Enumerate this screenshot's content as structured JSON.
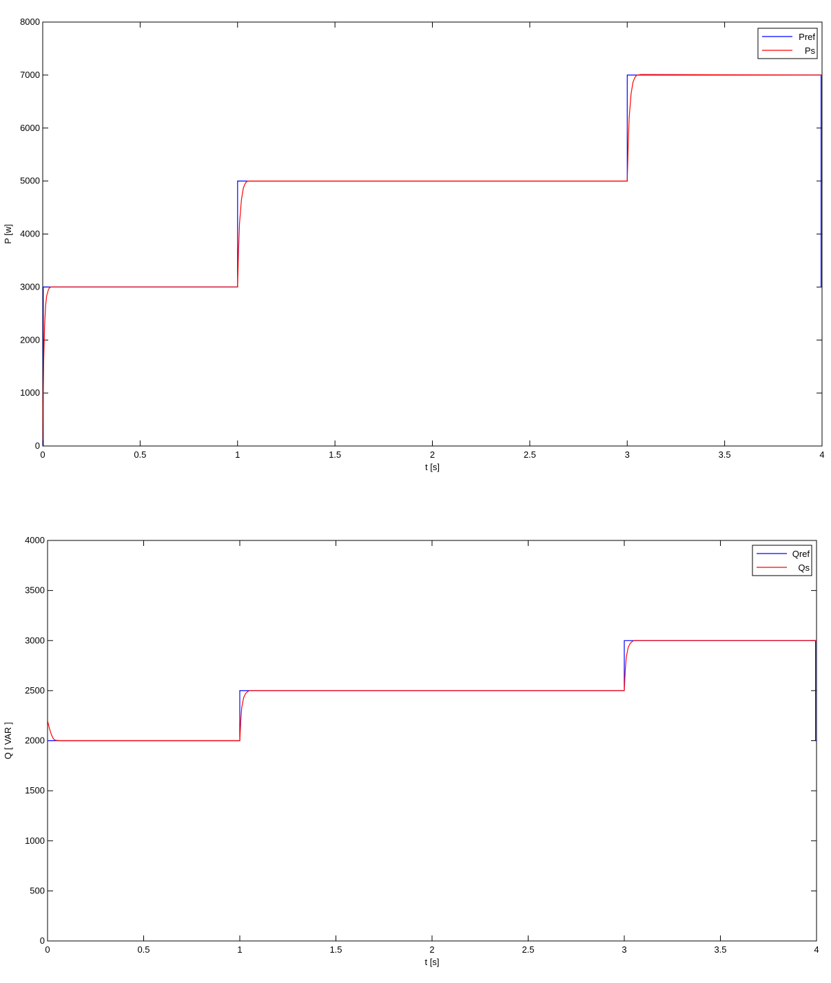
{
  "colors": {
    "ref": "#0000ff",
    "meas": "#ff0000",
    "axis": "#000000",
    "background": "#ffffff"
  },
  "chart_data": [
    {
      "type": "line",
      "xlabel": "t [s]",
      "ylabel": "P [w]",
      "xlim": [
        0,
        4
      ],
      "ylim": [
        0,
        8000
      ],
      "xticks": [
        0,
        0.5,
        1,
        1.5,
        2,
        2.5,
        3,
        3.5,
        4
      ],
      "xtick_labels": [
        "0",
        "0.5",
        "1",
        "1.5",
        "2",
        "2.5",
        "3",
        "3.5",
        "4"
      ],
      "yticks": [
        0,
        1000,
        2000,
        3000,
        4000,
        5000,
        6000,
        7000,
        8000
      ],
      "ytick_labels": [
        "0",
        "1000",
        "2000",
        "3000",
        "4000",
        "5000",
        "6000",
        "7000",
        "8000"
      ],
      "grid": false,
      "legend_position": "top-right",
      "series": [
        {
          "name": "Pref",
          "color": "#0000ff",
          "x": [
            0,
            0.003,
            0.003,
            1,
            1,
            3,
            3,
            3.995,
            3.995,
            4
          ],
          "y": [
            0,
            0,
            3000,
            3000,
            5000,
            5000,
            7000,
            7000,
            3000,
            3000
          ]
        },
        {
          "name": "Ps",
          "color": "#ff0000",
          "x": [
            0,
            0.005,
            0.01,
            0.015,
            0.02,
            0.03,
            0.04,
            0.05,
            1,
            1.005,
            1.01,
            1.02,
            1.03,
            1.04,
            1.05,
            1.07,
            3,
            3.005,
            3.01,
            3.02,
            3.03,
            3.04,
            3.05,
            3.07,
            4
          ],
          "y": [
            100,
            1600,
            2300,
            2650,
            2830,
            2960,
            3000,
            3000,
            3000,
            3700,
            4200,
            4650,
            4870,
            4960,
            5000,
            5000,
            5000,
            5700,
            6200,
            6650,
            6870,
            6960,
            7000,
            7010,
            7000
          ]
        }
      ]
    },
    {
      "type": "line",
      "xlabel": "t [s]",
      "ylabel": "Q [ VAR ]",
      "xlim": [
        0,
        4
      ],
      "ylim": [
        0,
        4000
      ],
      "xticks": [
        0,
        0.5,
        1,
        1.5,
        2,
        2.5,
        3,
        3.5,
        4
      ],
      "xtick_labels": [
        "0",
        "0.5",
        "1",
        "1.5",
        "2",
        "2.5",
        "3",
        "3.5",
        "4"
      ],
      "yticks": [
        0,
        500,
        1000,
        1500,
        2000,
        2500,
        3000,
        3500,
        4000
      ],
      "ytick_labels": [
        "0",
        "500",
        "1000",
        "1500",
        "2000",
        "2500",
        "3000",
        "3500",
        "4000"
      ],
      "grid": false,
      "legend_position": "top-right",
      "series": [
        {
          "name": "Qref",
          "color": "#0000ff",
          "x": [
            0,
            1,
            1,
            3,
            3,
            3.995,
            3.995,
            4
          ],
          "y": [
            2000,
            2000,
            2500,
            2500,
            3000,
            3000,
            2000,
            2000
          ]
        },
        {
          "name": "Qs",
          "color": "#ff0000",
          "x": [
            0,
            0.01,
            0.02,
            0.03,
            0.04,
            0.06,
            0.08,
            1,
            1.005,
            1.01,
            1.02,
            1.03,
            1.04,
            1.05,
            1.07,
            3,
            3.005,
            3.01,
            3.02,
            3.03,
            3.04,
            3.05,
            3.07,
            4
          ],
          "y": [
            2200,
            2120,
            2060,
            2020,
            2005,
            2000,
            2000,
            2000,
            2200,
            2330,
            2430,
            2470,
            2490,
            2500,
            2500,
            2500,
            2700,
            2830,
            2930,
            2970,
            2990,
            3000,
            3000,
            3000
          ]
        }
      ]
    }
  ]
}
